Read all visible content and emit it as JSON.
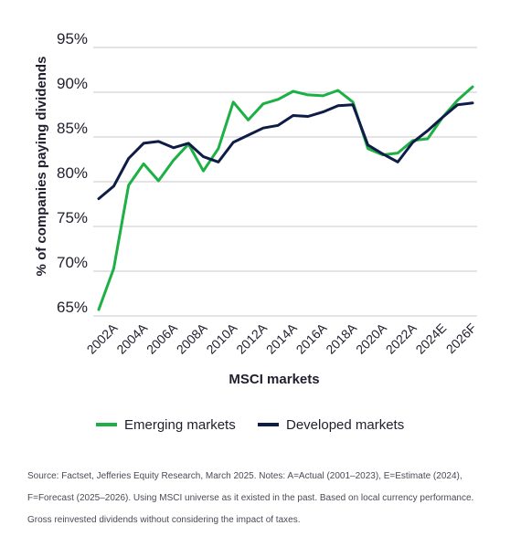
{
  "chart_data": {
    "type": "line",
    "title": "",
    "xlabel": "MSCI markets",
    "ylabel": "% of companies paying dividends",
    "ylim": [
      65,
      95
    ],
    "yticks": [
      "65%",
      "70%",
      "75%",
      "80%",
      "85%",
      "90%",
      "95%"
    ],
    "ytick_values": [
      65,
      70,
      75,
      80,
      85,
      90,
      95
    ],
    "categories": [
      "2001A",
      "2002A",
      "2003A",
      "2004A",
      "2005A",
      "2006A",
      "2007A",
      "2008A",
      "2009A",
      "2010A",
      "2011A",
      "2012A",
      "2013A",
      "2014A",
      "2015A",
      "2016A",
      "2017A",
      "2018A",
      "2019A",
      "2020A",
      "2021A",
      "2022A",
      "2023A",
      "2024E",
      "2025F",
      "2026F"
    ],
    "xtick_labels": [
      "2002A",
      "2004A",
      "2006A",
      "2008A",
      "2010A",
      "2012A",
      "2014A",
      "2016A",
      "2018A",
      "2020A",
      "2022A",
      "2024E",
      "2026F"
    ],
    "grid": "horizontal",
    "legend_position": "bottom",
    "series": [
      {
        "name": "Emerging markets",
        "color": "#1db045",
        "values": [
          65.7,
          70.3,
          79.6,
          82.0,
          80.1,
          82.4,
          84.2,
          81.2,
          83.7,
          88.9,
          86.9,
          88.7,
          89.2,
          90.1,
          89.7,
          89.6,
          90.2,
          88.9,
          83.7,
          83.0,
          83.2,
          84.6,
          84.8,
          87.2,
          89.1,
          90.6
        ]
      },
      {
        "name": "Developed markets",
        "color": "#0e1c47",
        "values": [
          78.1,
          79.5,
          82.6,
          84.3,
          84.5,
          83.8,
          84.3,
          82.8,
          82.2,
          84.4,
          85.2,
          86.0,
          86.3,
          87.4,
          87.3,
          87.8,
          88.5,
          88.6,
          84.1,
          83.1,
          82.2,
          84.4,
          85.7,
          87.2,
          88.6,
          88.8
        ]
      }
    ]
  },
  "legend": {
    "items": [
      {
        "label": "Emerging markets",
        "color": "#1db045"
      },
      {
        "label": "Developed markets",
        "color": "#0e1c47"
      }
    ]
  },
  "footer": {
    "source": "Source: Factset, Jefferies Equity Research, March 2025. Notes: A=Actual (2001–2023), E=Estimate (2024), F=Forecast (2025–2026). Using MSCI universe as it existed in the past. Based on local currency performance. Gross reinvested dividends without considering the impact of taxes."
  }
}
